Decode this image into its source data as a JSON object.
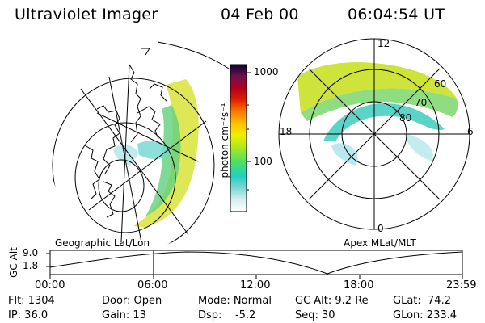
{
  "header": {
    "title": "Ultraviolet Imager",
    "date": "04 Feb 00",
    "time": "06:04:54 UT"
  },
  "colorbar": {
    "unit_label": "photon cm⁻²s⁻¹",
    "ticks": [
      "1000",
      "100"
    ]
  },
  "left_panel": {
    "caption": "Geographic Lat/Lon"
  },
  "right_panel": {
    "caption": "Apex  MLat/MLT",
    "mlt_labels": [
      "12",
      "18",
      "6",
      "0"
    ],
    "mlat_labels": [
      "60",
      "70",
      "80"
    ]
  },
  "altitude_plot": {
    "axis_label": "GC Alt",
    "y_ticks": [
      "9.0",
      "1.8"
    ],
    "x_ticks": [
      "00:00",
      "06:00",
      "12:00",
      "18:00",
      "23:59"
    ],
    "marker_color": "#c00000"
  },
  "footer": {
    "flt": "Flt: 1304",
    "ip": "IP: 36.0",
    "door": "Door: Open",
    "gain": "Gain: 13",
    "mode": "Mode: Normal",
    "dsp": "Dsp:    -5.2",
    "gcalt": "GC Alt: 9.2 Re",
    "seq": "Seq: 30",
    "glat": "GLat:  74.2",
    "glon": "GLon: 233.4"
  }
}
